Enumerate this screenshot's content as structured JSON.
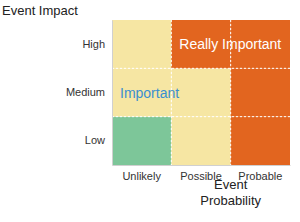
{
  "chart_data": {
    "type": "heatmap",
    "x_label": "Event\nProbability",
    "y_label": "Event Impact",
    "x_categories": [
      "Unlikely",
      "Possible",
      "Probable"
    ],
    "y_categories": [
      "Low",
      "Medium",
      "High"
    ],
    "colors": [
      [
        "#7dc699",
        "#f6e6a3",
        "#e2651f"
      ],
      [
        "#f6e6a3",
        "#f6e6a3",
        "#e2651f"
      ],
      [
        "#f6e6a3",
        "#e2651f",
        "#e2651f"
      ]
    ],
    "annotations": [
      {
        "text": "Really Important",
        "x": "Possible",
        "y": "High",
        "color": "#ffffff"
      },
      {
        "text": "Important",
        "x": "Unlikely",
        "y": "Medium",
        "color": "#3a8fd0"
      }
    ],
    "grid": true
  }
}
